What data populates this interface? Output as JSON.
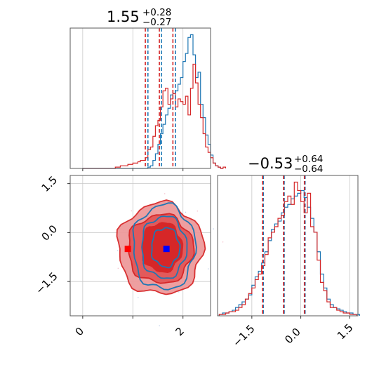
{
  "colors": {
    "blue": "#1f77b4",
    "red": "#d62728",
    "red_fill_light": "#ee9a9b",
    "red_fill_dark": "#d62728",
    "grid": "#c8c8c8",
    "frame": "#5a5a5a",
    "marker_blue": "#0000ff",
    "marker_red": "#ff0000"
  },
  "chart_data": {
    "type": "corner",
    "grid": true,
    "params": [
      "p1",
      "p2"
    ],
    "panel_titles": [
      {
        "param": "p1",
        "main": "1.55",
        "upper": "+0.28",
        "lower": "−0.27"
      },
      {
        "param": "p2",
        "main": "−0.53",
        "upper": "+0.64",
        "lower": "−0.64"
      }
    ],
    "axes": {
      "p1": {
        "range": [
          -0.25,
          2.55
        ],
        "ticks": [
          0,
          1,
          2
        ],
        "tick_labels": [
          "0",
          "",
          "2"
        ]
      },
      "p2": {
        "range": [
          -2.55,
          1.75
        ],
        "ticks": [
          -1.5,
          0.0,
          1.5
        ],
        "tick_labels": [
          "−1.5",
          "0.0",
          "1.5"
        ],
        "y_tick_labels": [
          "−1.5",
          "0.0",
          "1.5"
        ]
      }
    },
    "quantiles": {
      "p1": {
        "blue": [
          1.28,
          1.55,
          1.83
        ],
        "red": [
          1.27,
          1.55,
          1.82
        ]
      },
      "p2": {
        "blue": [
          -1.17,
          -0.53,
          0.11
        ],
        "red": [
          -1.17,
          -0.53,
          0.11
        ]
      }
    },
    "true_lines": {
      "p1": [
        1.0,
        1.85
      ],
      "p2": [
        -1.17,
        0.02
      ]
    },
    "hist_p1": {
      "edges_start": 0.0,
      "bin_width": 0.05,
      "blue": [
        0,
        0,
        0,
        0,
        0,
        0,
        0,
        0,
        0,
        0,
        0,
        0,
        0,
        0,
        0,
        0,
        0,
        0,
        0,
        0,
        0,
        0,
        0,
        0,
        0,
        0,
        1,
        2,
        6,
        11,
        18,
        26,
        33,
        40,
        45,
        55,
        56,
        58,
        63,
        68,
        80,
        86,
        98,
        100,
        85,
        68,
        72,
        48,
        38,
        25,
        18,
        10,
        4,
        2,
        1,
        0
      ],
      "red": [
        0,
        0,
        0,
        0,
        0,
        0,
        0,
        0,
        0,
        0,
        0,
        0,
        0,
        1,
        1,
        2,
        2,
        2,
        3,
        3,
        4,
        4,
        5,
        6,
        6,
        8,
        14,
        16,
        24,
        32,
        36,
        46,
        58,
        60,
        48,
        52,
        56,
        46,
        52,
        50,
        48,
        54,
        40,
        60,
        78,
        64,
        48,
        38,
        26,
        16,
        12,
        8,
        4,
        2,
        1,
        0,
        1
      ]
    },
    "hist_p2": {
      "edges_start": -2.5,
      "bin_width": 0.1,
      "blue": [
        1,
        2,
        2,
        3,
        4,
        6,
        8,
        10,
        12,
        15,
        22,
        28,
        32,
        38,
        46,
        54,
        62,
        66,
        68,
        74,
        78,
        80,
        84,
        86,
        88,
        90,
        85,
        78,
        70,
        60,
        46,
        30,
        20,
        12,
        8,
        6,
        5,
        4,
        3,
        2,
        2,
        1,
        1
      ],
      "red": [
        1,
        1,
        2,
        3,
        3,
        4,
        6,
        8,
        12,
        16,
        20,
        26,
        30,
        36,
        44,
        56,
        60,
        64,
        70,
        72,
        82,
        86,
        80,
        96,
        90,
        82,
        74,
        88,
        64,
        60,
        40,
        24,
        18,
        10,
        6,
        6,
        4,
        3,
        2,
        2,
        1,
        1
      ]
    },
    "markers": [
      {
        "color": "blue",
        "x": 1.67,
        "y": -0.5
      },
      {
        "color": "red",
        "x": 0.9,
        "y": -0.5
      }
    ],
    "contours_2d": {
      "red": [
        {
          "cx": 1.55,
          "cy": -0.5,
          "rx": 0.85,
          "ry": 1.4
        },
        {
          "cx": 1.55,
          "cy": -0.5,
          "rx": 0.65,
          "ry": 1.05
        },
        {
          "cx": 1.58,
          "cy": -0.45,
          "rx": 0.4,
          "ry": 0.75
        }
      ],
      "blue": [
        {
          "cx": 1.62,
          "cy": -0.45,
          "rx": 0.62,
          "ry": 1.3
        },
        {
          "cx": 1.62,
          "cy": -0.45,
          "rx": 0.45,
          "ry": 0.95
        },
        {
          "cx": 1.65,
          "cy": -0.45,
          "rx": 0.28,
          "ry": 0.6
        }
      ]
    }
  }
}
